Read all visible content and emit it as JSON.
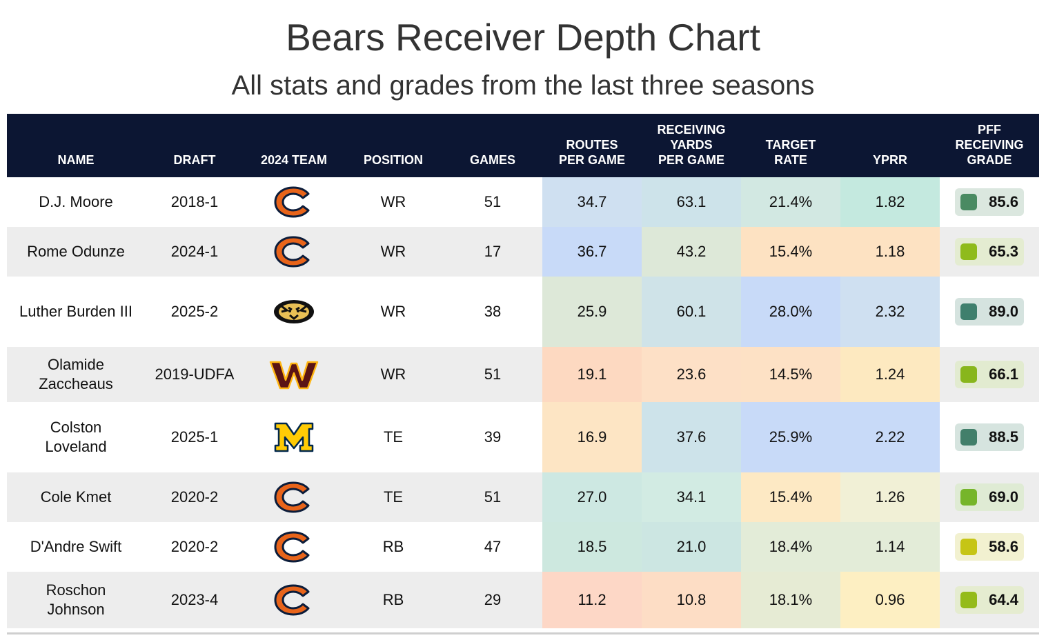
{
  "title": "Bears Receiver Depth Chart",
  "subtitle": "All stats and grades from the last three seasons",
  "columns": {
    "name": "NAME",
    "draft": "DRAFT",
    "team": "2024 TEAM",
    "position": "POSITION",
    "games": "GAMES",
    "routes": "ROUTES\nPER GAME",
    "yards": "RECEIVING\nYARDS\nPER GAME",
    "target": "TARGET\nRATE",
    "yprr": "YPRR",
    "grade": "PFF\nRECEIVING\nGRADE"
  },
  "rows": [
    {
      "name": "D.J. Moore",
      "draft": "2018-1",
      "team_logo": "chicago-bears-logo",
      "position": "WR",
      "games": "51",
      "routes": "34.7",
      "routes_bg": "#cfe0f1",
      "yards": "63.1",
      "yards_bg": "#cde3ea",
      "target": "21.4%",
      "target_bg": "#d2e8e2",
      "yprr": "1.82",
      "yprr_bg": "#c4e9df",
      "grade": "85.6",
      "grade_color": "#4a8a62",
      "grade_bg": "#dbe7df"
    },
    {
      "name": "Rome Odunze",
      "draft": "2024-1",
      "team_logo": "chicago-bears-logo",
      "position": "WR",
      "games": "17",
      "routes": "36.7",
      "routes_bg": "#c8daf8",
      "yards": "43.2",
      "yards_bg": "#dde8d8",
      "target": "15.4%",
      "target_bg": "#fde2c2",
      "yprr": "1.18",
      "yprr_bg": "#fde2c2",
      "grade": "65.3",
      "grade_color": "#8fbb1c",
      "grade_bg": "#e4ecd1"
    },
    {
      "name": "Luther Burden III",
      "draft": "2025-2",
      "team_logo": "missouri-tigers-logo",
      "position": "WR",
      "games": "38",
      "routes": "25.9",
      "routes_bg": "#dde8d8",
      "yards": "60.1",
      "yards_bg": "#cfe3e8",
      "target": "28.0%",
      "target_bg": "#c8daf8",
      "yprr": "2.32",
      "yprr_bg": "#cfe0f1",
      "grade": "89.0",
      "grade_color": "#3f7f6d",
      "grade_bg": "#d5e3df"
    },
    {
      "name": "Olamide\nZaccheaus",
      "draft": "2019-UDFA",
      "team_logo": "washington-commanders-logo",
      "position": "WR",
      "games": "51",
      "routes": "19.1",
      "routes_bg": "#fdd9c1",
      "yards": "23.6",
      "yards_bg": "#fde0c6",
      "target": "14.5%",
      "target_bg": "#fde1c5",
      "yprr": "1.24",
      "yprr_bg": "#fde9c0",
      "grade": "66.1",
      "grade_color": "#88b61c",
      "grade_bg": "#e2ebd0"
    },
    {
      "name": "Colston\nLoveland",
      "draft": "2025-1",
      "team_logo": "michigan-wolverines-logo",
      "position": "TE",
      "games": "39",
      "routes": "16.9",
      "routes_bg": "#fde5c4",
      "yards": "37.6",
      "yards_bg": "#cde3ea",
      "target": "25.9%",
      "target_bg": "#c8daf8",
      "yprr": "2.22",
      "yprr_bg": "#c8daf8",
      "grade": "88.5",
      "grade_color": "#427f6a",
      "grade_bg": "#d6e4df"
    },
    {
      "name": "Cole Kmet",
      "draft": "2020-2",
      "team_logo": "chicago-bears-logo",
      "position": "TE",
      "games": "51",
      "routes": "27.0",
      "routes_bg": "#cde8e2",
      "yards": "34.1",
      "yards_bg": "#d2ebe3",
      "target": "15.4%",
      "target_bg": "#fde9c4",
      "yprr": "1.26",
      "yprr_bg": "#f1f0d6",
      "grade": "69.0",
      "grade_color": "#76b52a",
      "grade_bg": "#dfebd4"
    },
    {
      "name": "D'Andre Swift",
      "draft": "2020-2",
      "team_logo": "chicago-bears-logo",
      "position": "RB",
      "games": "47",
      "routes": "18.5",
      "routes_bg": "#cde8df",
      "yards": "21.0",
      "yards_bg": "#cce6e2",
      "target": "18.4%",
      "target_bg": "#e3ecd8",
      "yprr": "1.14",
      "yprr_bg": "#e3ecd8",
      "grade": "58.6",
      "grade_color": "#c6c515",
      "grade_bg": "#f2f1d0"
    },
    {
      "name": "Roschon\nJohnson",
      "draft": "2023-4",
      "team_logo": "chicago-bears-logo",
      "position": "RB",
      "games": "29",
      "routes": "11.2",
      "routes_bg": "#fdd7c6",
      "yards": "10.8",
      "yards_bg": "#fdddc5",
      "target": "18.1%",
      "target_bg": "#e6ebd4",
      "yprr": "0.96",
      "yprr_bg": "#fdefc2",
      "grade": "64.4",
      "grade_color": "#94bb1a",
      "grade_bg": "#e5ecd0"
    }
  ]
}
